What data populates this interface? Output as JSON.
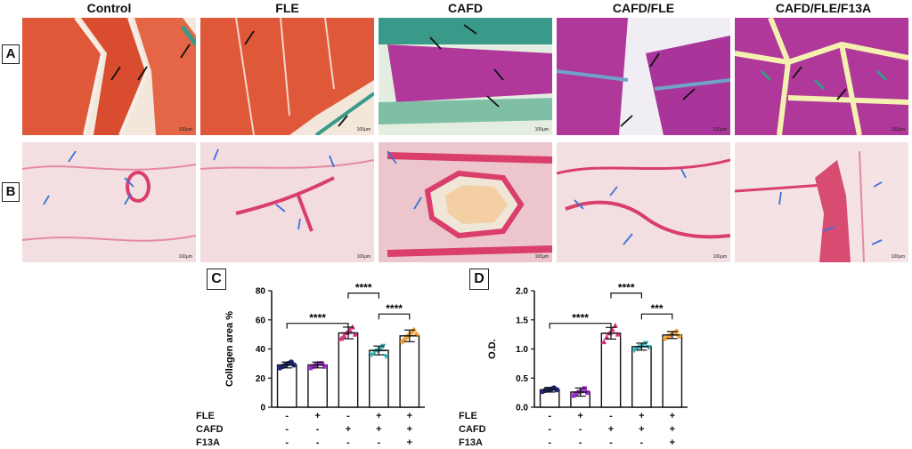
{
  "columns": [
    "Control",
    "FLE",
    "CAFD",
    "CAFD/FLE",
    "CAFD/FLE/F13A"
  ],
  "row_labels": [
    "A",
    "B"
  ],
  "scale_label": "100μm",
  "colors": {
    "trichrome_muscle_red": "#e0583a",
    "trichrome_collagen_green": "#3a9a8a",
    "trichrome_muscle_magenta": "#b0389a",
    "sirius_red": "#d93f6a",
    "arrow_black": "#111111",
    "arrow_blue": "#3c72d8"
  },
  "chart_data": [
    {
      "panel": "C",
      "type": "bar",
      "ylabel": "Collagen area %",
      "ylim": [
        0,
        80
      ],
      "yticks": [
        "0",
        "20",
        "40",
        "60",
        "80"
      ],
      "categories": [
        "Control",
        "FLE",
        "CAFD",
        "CAFD/FLE",
        "CAFD/FLE/F13A"
      ],
      "values": [
        29,
        29,
        51,
        39,
        49
      ],
      "errors": [
        2,
        2,
        4,
        3,
        4
      ],
      "colors": [
        "#1f2a7a",
        "#9b33c9",
        "#d8317b",
        "#2fb3b8",
        "#f0a03a"
      ],
      "points": [
        [
          27,
          28,
          29,
          30,
          31,
          29
        ],
        [
          27,
          28,
          29,
          30,
          30,
          28
        ],
        [
          47,
          49,
          51,
          53,
          55,
          50
        ],
        [
          36,
          38,
          39,
          40,
          42,
          35
        ],
        [
          45,
          47,
          49,
          51,
          53,
          50
        ]
      ],
      "significance": [
        {
          "from": 0,
          "to": 2,
          "label": "****"
        },
        {
          "from": 2,
          "to": 3,
          "label": "****"
        },
        {
          "from": 3,
          "to": 4,
          "label": "****"
        }
      ]
    },
    {
      "panel": "D",
      "type": "bar",
      "ylabel": "O.D.",
      "ylim": [
        0,
        2.0
      ],
      "yticks": [
        "0.0",
        "0.5",
        "1.0",
        "1.5",
        "2.0"
      ],
      "categories": [
        "Control",
        "FLE",
        "CAFD",
        "CAFD/FLE",
        "CAFD/FLE/F13A"
      ],
      "values": [
        0.3,
        0.26,
        1.27,
        1.04,
        1.24
      ],
      "errors": [
        0.04,
        0.07,
        0.1,
        0.06,
        0.06
      ],
      "colors": [
        "#1f2a7a",
        "#9b33c9",
        "#d8317b",
        "#2fb3b8",
        "#f0a03a"
      ],
      "points": [
        [
          0.27,
          0.29,
          0.3,
          0.31,
          0.33,
          0.3
        ],
        [
          0.2,
          0.23,
          0.26,
          0.28,
          0.32,
          0.25
        ],
        [
          1.12,
          1.2,
          1.27,
          1.33,
          1.4,
          1.25
        ],
        [
          0.98,
          1.01,
          1.04,
          1.07,
          1.1,
          1.03
        ],
        [
          1.18,
          1.21,
          1.24,
          1.27,
          1.3,
          1.22
        ]
      ],
      "significance": [
        {
          "from": 0,
          "to": 2,
          "label": "****"
        },
        {
          "from": 2,
          "to": 3,
          "label": "****"
        },
        {
          "from": 3,
          "to": 4,
          "label": "***"
        }
      ]
    }
  ],
  "treatment_table": {
    "rows": [
      {
        "label": "FLE",
        "signs": [
          "-",
          "+",
          "-",
          "+",
          "+"
        ]
      },
      {
        "label": "CAFD",
        "signs": [
          "-",
          "-",
          "+",
          "+",
          "+"
        ]
      },
      {
        "label": "F13A",
        "signs": [
          "-",
          "-",
          "-",
          "-",
          "+"
        ]
      }
    ]
  }
}
